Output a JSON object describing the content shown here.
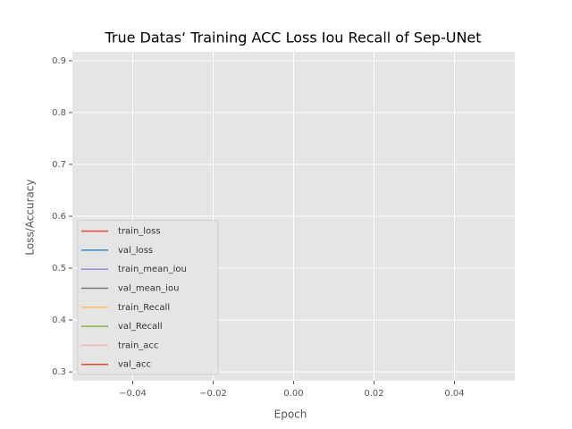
{
  "chart_data": {
    "type": "line",
    "title": "True Datas‘ Training ACC Loss Iou Recall of Sep-UNet",
    "x_label": "Epoch",
    "y_label": "Loss/Accuracy",
    "x": [],
    "series": [
      {
        "name": "train_loss",
        "color": "#E24A33",
        "values": []
      },
      {
        "name": "val_loss",
        "color": "#348ABD",
        "values": []
      },
      {
        "name": "train_mean_iou",
        "color": "#988ED5",
        "values": []
      },
      {
        "name": "val_mean_iou",
        "color": "#777777",
        "values": []
      },
      {
        "name": "train_Recall",
        "color": "#FBC15E",
        "values": []
      },
      {
        "name": "val_Recall",
        "color": "#8EBA42",
        "values": []
      },
      {
        "name": "train_acc",
        "color": "#FFB5B8",
        "values": []
      },
      {
        "name": "val_acc",
        "color": "#E24A33",
        "values": []
      }
    ],
    "xlim": [
      -0.055,
      0.055
    ],
    "xticks": [
      {
        "value": -0.04,
        "label": "−0.04"
      },
      {
        "value": -0.02,
        "label": "−0.02"
      },
      {
        "value": 0,
        "label": "0.00"
      },
      {
        "value": 0.02,
        "label": "0.02"
      },
      {
        "value": 0.04,
        "label": "0.04"
      }
    ],
    "ylim": [
      0.283,
      0.917
    ],
    "yticks": [
      0.3,
      0.4,
      0.5,
      0.6,
      0.7,
      0.8,
      0.9
    ],
    "grid": true,
    "legend": "lower left"
  }
}
